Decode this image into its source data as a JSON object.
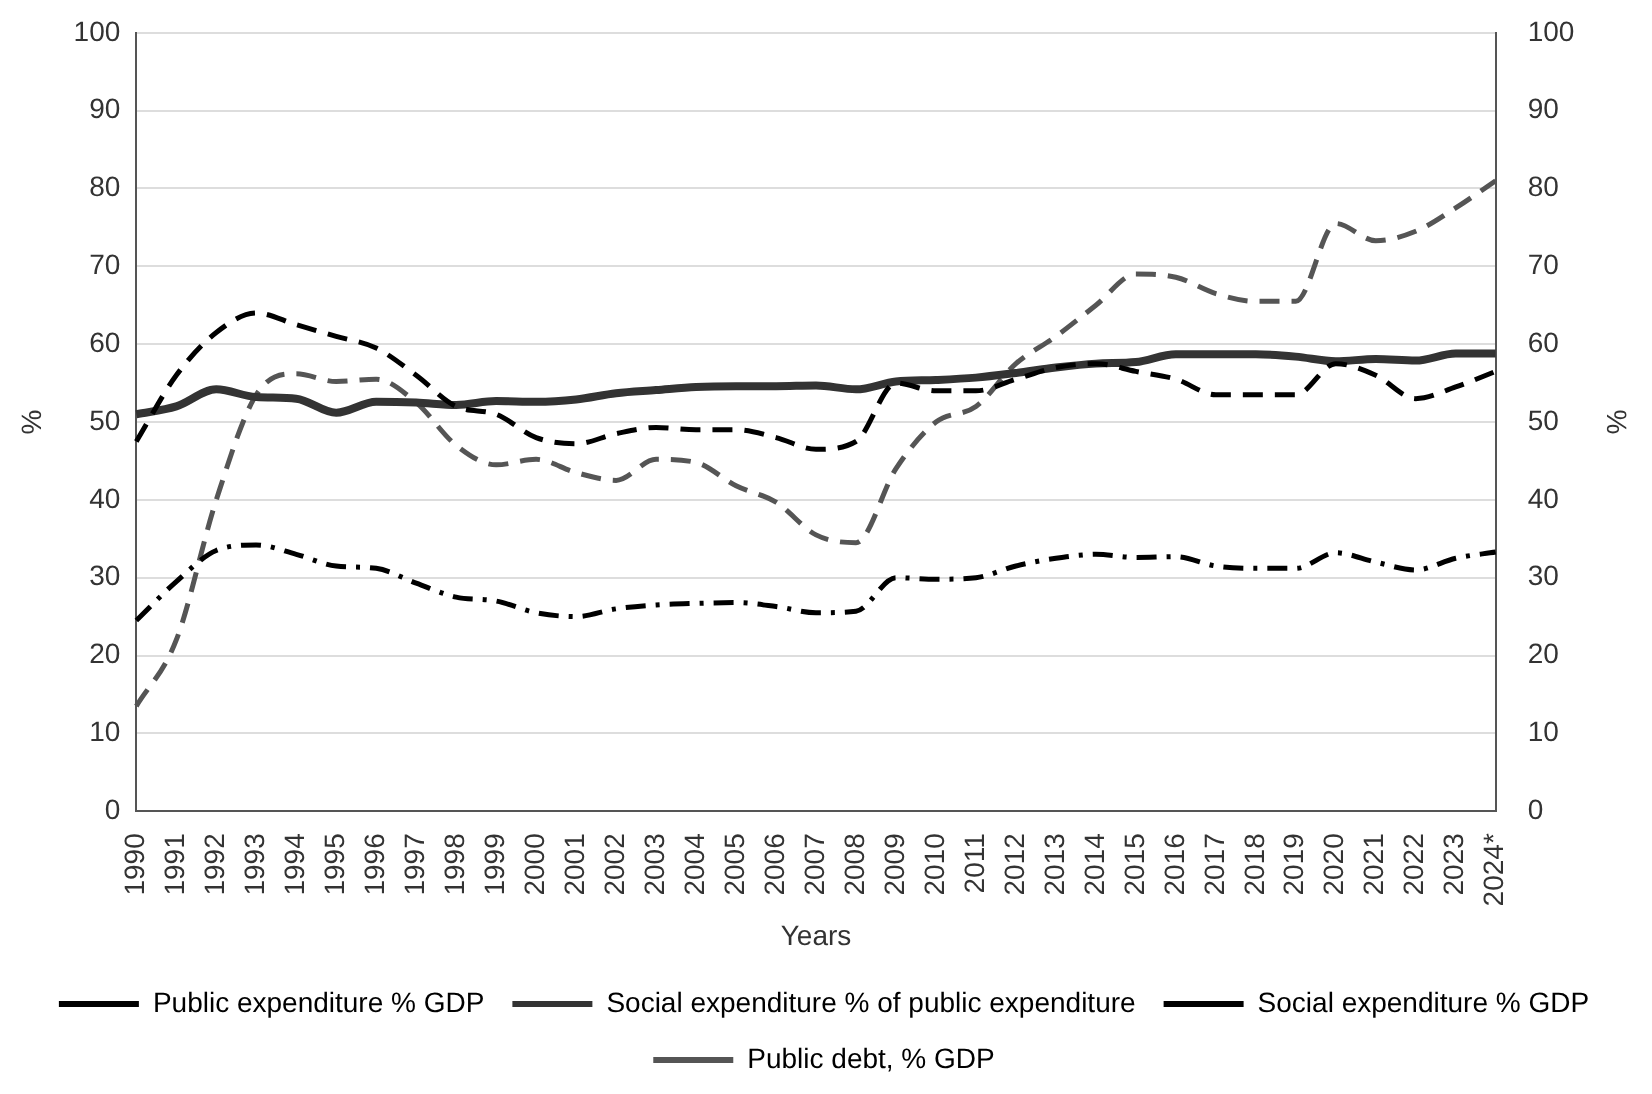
{
  "chart_data": {
    "type": "line",
    "categories": [
      "1990",
      "1991",
      "1992",
      "1993",
      "1994",
      "1995",
      "1996",
      "1997",
      "1998",
      "1999",
      "2000",
      "2001",
      "2002",
      "2003",
      "2004",
      "2005",
      "2006",
      "2007",
      "2008",
      "2009",
      "2010",
      "2011",
      "2012",
      "2013",
      "2014",
      "2015",
      "2016",
      "2017",
      "2018",
      "2019",
      "2020",
      "2021",
      "2022",
      "2023",
      "2024*"
    ],
    "series": [
      {
        "name": "Public expenditure % GDP",
        "color": "#000000",
        "line_style": "dashed",
        "values": [
          47.5,
          56,
          61.5,
          64,
          62.5,
          61,
          59.5,
          56,
          52,
          51,
          48,
          47.2,
          48.5,
          49.3,
          49,
          49,
          48,
          46.5,
          47.5,
          55,
          54,
          54,
          55.5,
          57,
          57.5,
          56.5,
          55.5,
          53.5,
          53.5,
          53.5,
          57.5,
          56,
          53,
          54.5,
          56.5
        ]
      },
      {
        "name": "Social expenditure % of public expenditure",
        "color": "#333333",
        "line_style": "solid",
        "values": [
          51,
          52,
          54.2,
          53.2,
          53,
          51.2,
          52.6,
          52.5,
          52.2,
          52.7,
          52.6,
          52.9,
          53.7,
          54.1,
          54.5,
          54.6,
          54.6,
          54.7,
          54.2,
          55.2,
          55.4,
          55.7,
          56.3,
          57,
          57.5,
          57.7,
          58.7,
          58.7,
          58.7,
          58.4,
          57.8,
          58.1,
          57.9,
          58.8,
          58.8
        ]
      },
      {
        "name": "Social expenditure % GDP",
        "color": "#000000",
        "line_style": "dotted",
        "values": [
          24.5,
          29.5,
          33.5,
          34.2,
          33,
          31.5,
          31.2,
          29.3,
          27.5,
          27,
          25.5,
          25,
          26,
          26.5,
          26.7,
          26.8,
          26.3,
          25.5,
          25.7,
          30,
          29.8,
          30,
          31.5,
          32.5,
          33,
          32.6,
          32.7,
          31.5,
          31.2,
          31.2,
          33.2,
          32,
          31,
          32.5,
          33.3
        ]
      },
      {
        "name": "Public debt, % GDP",
        "color": "#555555",
        "line_style": "dashed",
        "values": [
          13.5,
          22,
          40,
          53.5,
          56.2,
          55.2,
          55.5,
          52.5,
          47,
          44.5,
          45.2,
          43.5,
          42.5,
          45.2,
          44.8,
          41.8,
          39.7,
          35.5,
          34.5,
          44,
          50,
          52,
          57.5,
          61,
          65,
          69,
          68.6,
          66.5,
          65.5,
          65.5,
          75.5,
          73.3,
          74.5,
          77.5,
          81
        ]
      }
    ],
    "xlabel": "Years",
    "ylabel": "%",
    "y2label": "%",
    "ylim": [
      0,
      100
    ],
    "yticks": [
      0,
      10,
      20,
      30,
      40,
      50,
      60,
      70,
      80,
      90,
      100
    ],
    "y2lim": [
      0,
      100
    ],
    "y2ticks": [
      0,
      10,
      20,
      30,
      40,
      50,
      60,
      70,
      80,
      90,
      100
    ],
    "grid": "y",
    "legend": "bottom",
    "marker": "none"
  }
}
